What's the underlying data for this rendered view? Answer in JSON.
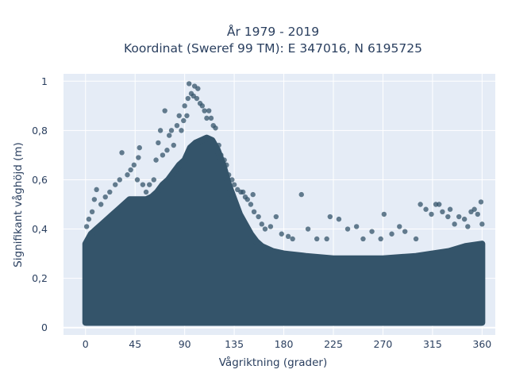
{
  "chart_data": {
    "type": "scatter",
    "title_lines": [
      "År 1979 - 2019",
      "Koordinat (Sweref 99 TM): E 347016, N 6195725"
    ],
    "xlabel": "Vågriktning (grader)",
    "ylabel": "Signifikant våghöjd (m)",
    "xlim": [
      -20,
      372
    ],
    "ylim": [
      -0.03,
      1.03
    ],
    "xticks": [
      0,
      45,
      90,
      135,
      180,
      225,
      270,
      315,
      360
    ],
    "xtick_labels": [
      "0",
      "45",
      "90",
      "135",
      "180",
      "225",
      "270",
      "315",
      "360"
    ],
    "yticks": [
      0,
      0.2,
      0.4,
      0.6,
      0.8,
      1
    ],
    "ytick_labels": [
      "0",
      "0,2",
      "0,4",
      "0,6",
      "0,8",
      "1"
    ],
    "grid": true,
    "colors": {
      "background": "#e5ecf6",
      "grid": "#ffffff",
      "marker": "#34546a"
    },
    "dense_band_upper_envelope": [
      [
        0,
        0.34
      ],
      [
        5,
        0.38
      ],
      [
        10,
        0.4
      ],
      [
        15,
        0.42
      ],
      [
        20,
        0.44
      ],
      [
        25,
        0.46
      ],
      [
        30,
        0.48
      ],
      [
        35,
        0.5
      ],
      [
        40,
        0.52
      ],
      [
        45,
        0.52
      ],
      [
        50,
        0.52
      ],
      [
        55,
        0.52
      ],
      [
        60,
        0.53
      ],
      [
        65,
        0.55
      ],
      [
        70,
        0.58
      ],
      [
        75,
        0.6
      ],
      [
        80,
        0.63
      ],
      [
        85,
        0.66
      ],
      [
        90,
        0.68
      ],
      [
        95,
        0.73
      ],
      [
        100,
        0.75
      ],
      [
        105,
        0.76
      ],
      [
        110,
        0.77
      ],
      [
        115,
        0.76
      ],
      [
        120,
        0.72
      ],
      [
        125,
        0.66
      ],
      [
        130,
        0.58
      ],
      [
        135,
        0.52
      ],
      [
        140,
        0.46
      ],
      [
        145,
        0.42
      ],
      [
        150,
        0.38
      ],
      [
        155,
        0.35
      ],
      [
        160,
        0.33
      ],
      [
        170,
        0.31
      ],
      [
        180,
        0.3
      ],
      [
        200,
        0.29
      ],
      [
        225,
        0.28
      ],
      [
        250,
        0.28
      ],
      [
        270,
        0.28
      ],
      [
        300,
        0.29
      ],
      [
        315,
        0.3
      ],
      [
        330,
        0.31
      ],
      [
        345,
        0.33
      ],
      [
        360,
        0.34
      ]
    ],
    "dense_band_lower_bound": 0.02,
    "outlier_points": [
      [
        1,
        0.41
      ],
      [
        3,
        0.44
      ],
      [
        6,
        0.47
      ],
      [
        8,
        0.52
      ],
      [
        10,
        0.56
      ],
      [
        14,
        0.5
      ],
      [
        18,
        0.53
      ],
      [
        22,
        0.55
      ],
      [
        27,
        0.58
      ],
      [
        31,
        0.6
      ],
      [
        33,
        0.71
      ],
      [
        38,
        0.62
      ],
      [
        41,
        0.64
      ],
      [
        44,
        0.66
      ],
      [
        47,
        0.6
      ],
      [
        48,
        0.69
      ],
      [
        49,
        0.73
      ],
      [
        52,
        0.58
      ],
      [
        55,
        0.55
      ],
      [
        58,
        0.58
      ],
      [
        62,
        0.6
      ],
      [
        64,
        0.68
      ],
      [
        66,
        0.75
      ],
      [
        68,
        0.8
      ],
      [
        70,
        0.7
      ],
      [
        72,
        0.88
      ],
      [
        74,
        0.72
      ],
      [
        76,
        0.78
      ],
      [
        78,
        0.8
      ],
      [
        80,
        0.74
      ],
      [
        83,
        0.82
      ],
      [
        85,
        0.86
      ],
      [
        87,
        0.8
      ],
      [
        89,
        0.84
      ],
      [
        90,
        0.9
      ],
      [
        92,
        0.86
      ],
      [
        93,
        0.93
      ],
      [
        94,
        0.99
      ],
      [
        96,
        0.95
      ],
      [
        98,
        0.94
      ],
      [
        99,
        0.98
      ],
      [
        101,
        0.93
      ],
      [
        102,
        0.97
      ],
      [
        104,
        0.91
      ],
      [
        106,
        0.9
      ],
      [
        108,
        0.88
      ],
      [
        110,
        0.85
      ],
      [
        112,
        0.88
      ],
      [
        114,
        0.85
      ],
      [
        116,
        0.82
      ],
      [
        118,
        0.81
      ],
      [
        121,
        0.74
      ],
      [
        123,
        0.7
      ],
      [
        126,
        0.68
      ],
      [
        128,
        0.66
      ],
      [
        130,
        0.62
      ],
      [
        133,
        0.6
      ],
      [
        135,
        0.58
      ],
      [
        138,
        0.56
      ],
      [
        141,
        0.55
      ],
      [
        143,
        0.55
      ],
      [
        145,
        0.53
      ],
      [
        147,
        0.52
      ],
      [
        150,
        0.5
      ],
      [
        152,
        0.54
      ],
      [
        153,
        0.47
      ],
      [
        157,
        0.45
      ],
      [
        160,
        0.42
      ],
      [
        163,
        0.4
      ],
      [
        168,
        0.41
      ],
      [
        173,
        0.45
      ],
      [
        178,
        0.38
      ],
      [
        184,
        0.37
      ],
      [
        188,
        0.36
      ],
      [
        196,
        0.54
      ],
      [
        202,
        0.4
      ],
      [
        210,
        0.36
      ],
      [
        219,
        0.36
      ],
      [
        222,
        0.45
      ],
      [
        230,
        0.44
      ],
      [
        238,
        0.4
      ],
      [
        246,
        0.41
      ],
      [
        252,
        0.36
      ],
      [
        260,
        0.39
      ],
      [
        268,
        0.36
      ],
      [
        271,
        0.46
      ],
      [
        278,
        0.38
      ],
      [
        285,
        0.41
      ],
      [
        290,
        0.39
      ],
      [
        300,
        0.36
      ],
      [
        304,
        0.5
      ],
      [
        309,
        0.48
      ],
      [
        314,
        0.46
      ],
      [
        318,
        0.5
      ],
      [
        321,
        0.5
      ],
      [
        324,
        0.47
      ],
      [
        329,
        0.45
      ],
      [
        331,
        0.48
      ],
      [
        335,
        0.42
      ],
      [
        339,
        0.45
      ],
      [
        344,
        0.44
      ],
      [
        347,
        0.41
      ],
      [
        350,
        0.47
      ],
      [
        353,
        0.48
      ],
      [
        356,
        0.46
      ],
      [
        359,
        0.51
      ],
      [
        360,
        0.42
      ]
    ]
  }
}
